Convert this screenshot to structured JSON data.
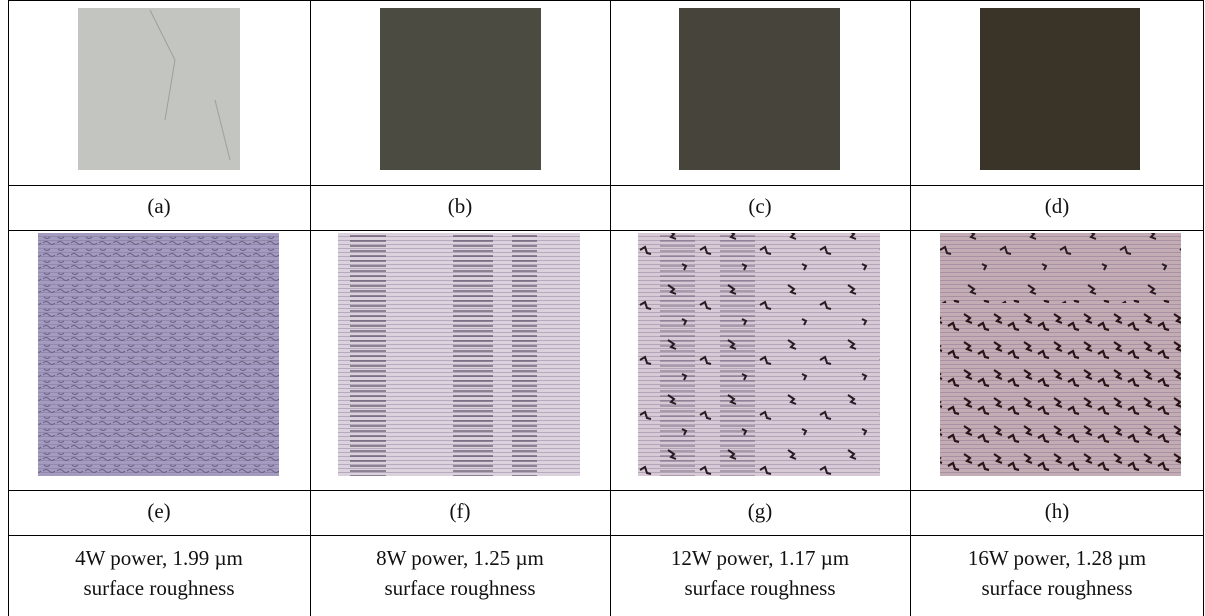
{
  "table": {
    "rows": [
      [
        "(a)",
        "(b)",
        "(c)",
        "(d)"
      ],
      [
        "(e)",
        "(f)",
        "(g)",
        "(h)"
      ],
      [
        [
          "4W power, 1.99 µm",
          "surface roughness"
        ],
        [
          "8W power, 1.25 µm",
          "surface roughness"
        ],
        [
          "12W power, 1.17 µm",
          "surface roughness"
        ],
        [
          "16W power, 1.28 µm",
          "surface roughness"
        ]
      ]
    ]
  }
}
